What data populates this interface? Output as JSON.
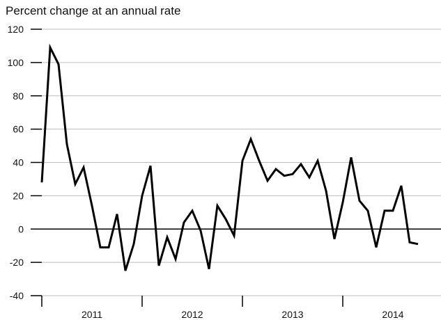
{
  "chart_data": {
    "type": "line",
    "title": "",
    "xlabel": "",
    "ylabel": "Percent change at an annual rate",
    "ylim": [
      -40,
      120
    ],
    "yticks": [
      -40,
      -20,
      0,
      20,
      40,
      60,
      80,
      100,
      120
    ],
    "year_labels": [
      "2011",
      "2012",
      "2013",
      "2014"
    ],
    "x_start": "2011-01",
    "grid": true,
    "legend": "none",
    "line_color": "#000000",
    "series": [
      {
        "x": [
          "2011-01",
          "2011-02",
          "2011-03",
          "2011-04",
          "2011-05",
          "2011-06",
          "2011-07",
          "2011-08",
          "2011-09",
          "2011-10",
          "2011-11",
          "2011-12",
          "2012-01",
          "2012-02",
          "2012-03",
          "2012-04",
          "2012-05",
          "2012-06",
          "2012-07",
          "2012-08",
          "2012-09",
          "2012-10",
          "2012-11",
          "2012-12",
          "2013-01",
          "2013-02",
          "2013-03",
          "2013-04",
          "2013-05",
          "2013-06",
          "2013-07",
          "2013-08",
          "2013-09",
          "2013-10",
          "2013-11",
          "2013-12",
          "2014-01",
          "2014-02",
          "2014-03",
          "2014-04",
          "2014-05",
          "2014-06",
          "2014-07",
          "2014-08",
          "2014-09",
          "2014-10",
          "2014-11",
          "2014-12"
        ],
        "values": [
          28,
          109,
          99,
          51,
          27,
          37,
          14,
          -11,
          -11,
          9,
          -25,
          -9,
          20,
          38,
          -22,
          -5,
          -18,
          4,
          11,
          -1,
          -24,
          14,
          6,
          -4,
          41,
          54,
          41,
          29,
          36,
          32,
          33,
          39,
          31,
          41,
          23,
          -6,
          16,
          43,
          17,
          11,
          -11,
          11,
          11,
          26,
          -8,
          -9,
          null,
          null
        ]
      }
    ]
  }
}
